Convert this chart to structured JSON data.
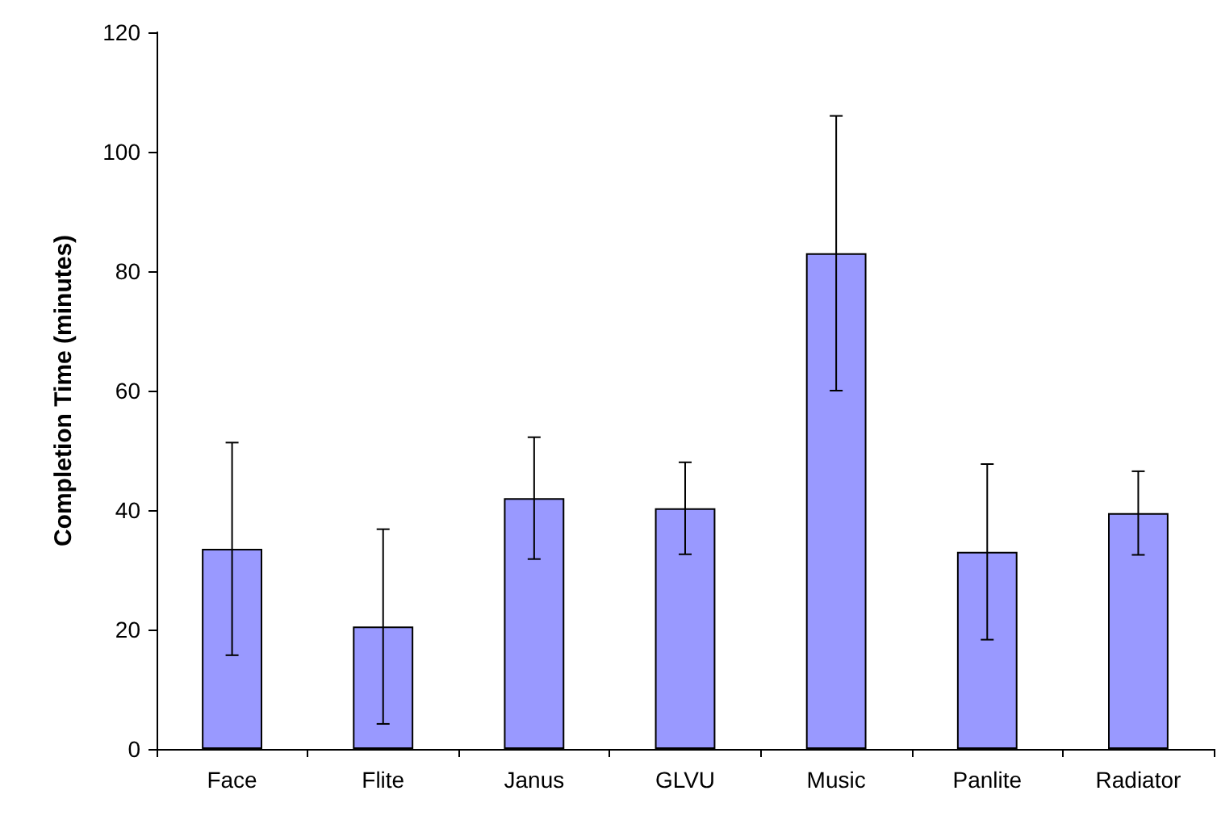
{
  "chart_data": {
    "type": "bar",
    "ylabel": "Completion Time (minutes)",
    "categories": [
      "Face",
      "Flite",
      "Janus",
      "GLVU",
      "Music",
      "Panlite",
      "Radiator"
    ],
    "values": [
      33.5,
      20.5,
      42,
      40.3,
      83,
      33,
      39.5
    ],
    "errors": [
      17.8,
      16.3,
      10.2,
      7.7,
      23,
      14.7,
      7
    ],
    "color": "#9999ff",
    "ylim": [
      0,
      120
    ],
    "yticks": [
      0,
      20,
      40,
      60,
      80,
      100,
      120
    ],
    "grid": false
  }
}
